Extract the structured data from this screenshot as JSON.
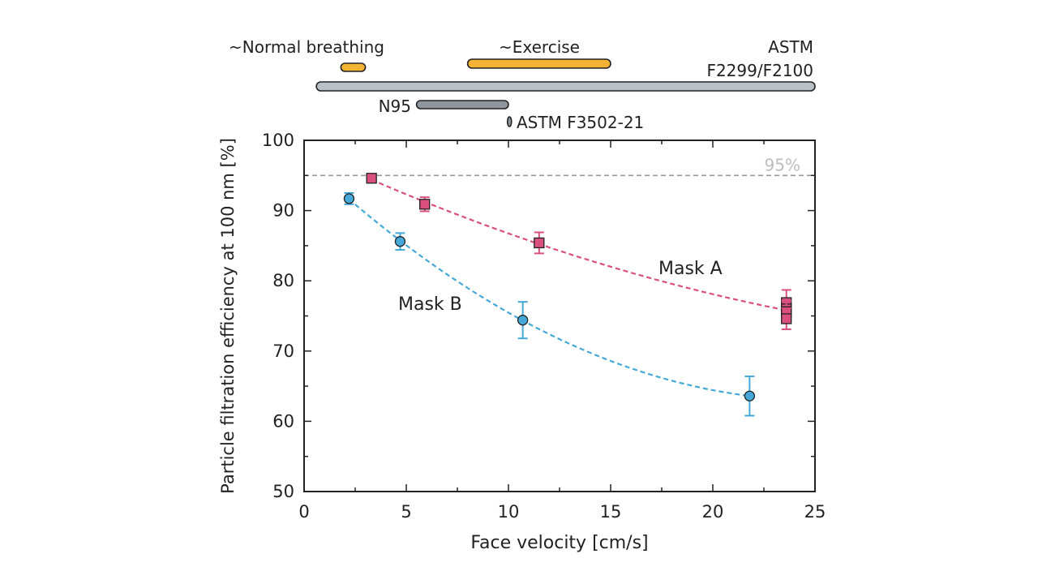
{
  "chart_data": {
    "type": "scatter",
    "xlabel": "Face velocity [cm/s]",
    "ylabel": "Particle filtration efficiency at 100 nm [%]",
    "xlim": [
      0,
      25
    ],
    "ylim": [
      50,
      100
    ],
    "xticks": [
      0,
      5,
      10,
      15,
      20,
      25
    ],
    "yticks": [
      50,
      60,
      70,
      80,
      90,
      100
    ],
    "reference_line": {
      "y": 95,
      "label": "95%",
      "style": "dashed"
    },
    "series": [
      {
        "name": "Mask A",
        "color": "#d94f7e",
        "marker": "square",
        "x": [
          3.3,
          5.9,
          11.5,
          23.6,
          23.6,
          23.6,
          23.6
        ],
        "y": [
          94.6,
          90.9,
          85.4,
          76.9,
          76.0,
          75.6,
          74.6
        ],
        "error": [
          0,
          1.0,
          1.5,
          1.8,
          1.2,
          1.5,
          1.5
        ]
      },
      {
        "name": "Mask B",
        "color": "#45a8d8",
        "marker": "circle",
        "x": [
          2.2,
          4.7,
          10.7,
          21.8
        ],
        "y": [
          91.7,
          85.6,
          74.4,
          63.6
        ],
        "error": [
          0.8,
          1.2,
          2.6,
          2.8
        ]
      }
    ],
    "annotations": [
      "Mask A",
      "Mask B"
    ],
    "ranges": [
      {
        "label": "~Normal breathing",
        "from": 1.8,
        "to": 3.0,
        "color": "#f2b233"
      },
      {
        "label": "~Exercise",
        "from": 8.0,
        "to": 15.0,
        "color": "#f2b233"
      },
      {
        "label_lines": [
          "ASTM",
          "F2299/F2100"
        ],
        "from": 0.6,
        "to": 25.0,
        "color": "#b8c0c8"
      },
      {
        "label": "N95",
        "from": 5.5,
        "to": 10.0,
        "color": "#8e959c"
      },
      {
        "label": "ASTM F3502-21",
        "from": 9.95,
        "to": 10.1,
        "color": "#8e959c"
      }
    ]
  }
}
